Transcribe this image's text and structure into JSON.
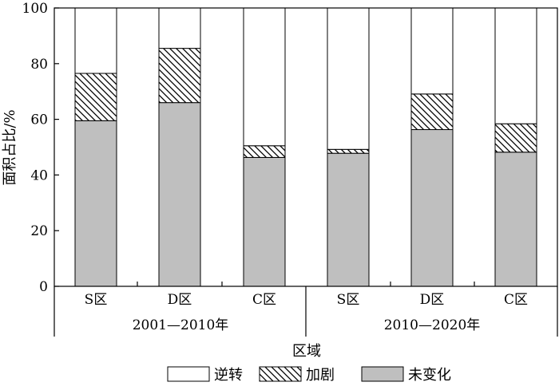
{
  "chart_data": {
    "type": "bar",
    "stacked": true,
    "ylabel": "面积占比/%",
    "xlabel": "区域",
    "ylim": [
      0,
      100
    ],
    "yticks": [
      0,
      20,
      40,
      60,
      80,
      100
    ],
    "grid": false,
    "legend_position": "bottom",
    "groups": [
      {
        "label": "2001—2010年",
        "categories": [
          "S区",
          "D区",
          "C区"
        ]
      },
      {
        "label": "2010—2020年",
        "categories": [
          "S区",
          "D区",
          "C区"
        ]
      }
    ],
    "categories": [
      "S区",
      "D区",
      "C区",
      "S区",
      "D区",
      "C区"
    ],
    "series": [
      {
        "name": "未变化",
        "values": [
          59.5,
          66.0,
          46.3,
          47.8,
          56.3,
          48.2
        ],
        "color": "#bfbfbf",
        "pattern": "solid"
      },
      {
        "name": "加剧",
        "values": [
          17.0,
          19.5,
          4.2,
          1.4,
          12.8,
          10.2
        ],
        "color": "#ffffff",
        "pattern": "hatch"
      },
      {
        "name": "逆转",
        "values": [
          23.5,
          14.5,
          49.5,
          50.8,
          30.9,
          41.6
        ],
        "color": "#ffffff",
        "pattern": "none"
      }
    ],
    "legend": [
      {
        "name": "逆转",
        "pattern": "none"
      },
      {
        "name": "加剧",
        "pattern": "hatch"
      },
      {
        "name": "未变化",
        "pattern": "solid"
      }
    ]
  }
}
